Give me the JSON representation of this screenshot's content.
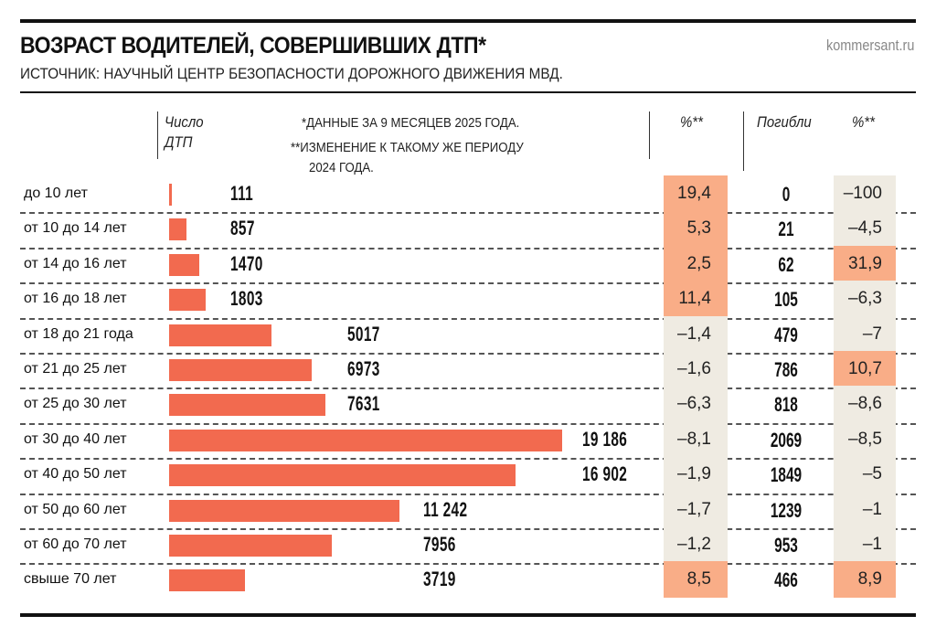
{
  "header": {
    "title": "ВОЗРАСТ ВОДИТЕЛЕЙ, СОВЕРШИВШИХ ДТП*",
    "site": "kommersant.ru",
    "source": "ИСТОЧНИК: НАУЧНЫЙ ЦЕНТР БЕЗОПАСНОСТИ ДОРОЖНОГО ДВИЖЕНИЯ МВД."
  },
  "columns": {
    "accidents_line1": "Число",
    "accidents_line2": "ДТП",
    "pct1": "%**",
    "deaths": "Погибли",
    "pct2": "%**"
  },
  "notes": {
    "n1": "*ДАННЫЕ ЗА 9 МЕСЯЦЕВ 2025 ГОДА.",
    "n2a": "**ИЗМЕНЕНИЕ К ТАКОМУ ЖЕ ПЕРИОДУ",
    "n2b": "2024 ГОДА."
  },
  "colors": {
    "bar": "#f26a4f",
    "positive": "#f9ad87",
    "neutral": "#efebe2"
  },
  "chart_data": {
    "type": "bar",
    "categories": [
      "до 10 лет",
      "от 10 до 14 лет",
      "от 14 до 16 лет",
      "от 16 до 18 лет",
      "от 18 до 21 года",
      "от 21 до 25 лет",
      "от 25 до 30 лет",
      "от 30 до 40 лет",
      "от 40 до 50 лет",
      "от 50 до 60 лет",
      "от 60 до 70 лет",
      "свыше 70 лет"
    ],
    "values": [
      111,
      857,
      1470,
      1803,
      5017,
      6973,
      7631,
      19186,
      16902,
      11242,
      7956,
      3719
    ],
    "value_labels": [
      "111",
      "857",
      "1470",
      "1803",
      "5017",
      "6973",
      "7631",
      "19 186",
      "16 902",
      "11 242",
      "7956",
      "3719"
    ],
    "accidents_change_pct": [
      "19,4",
      "5,3",
      "2,5",
      "11,4",
      "–1,4",
      "–1,6",
      "–6,3",
      "–8,1",
      "–1,9",
      "–1,7",
      "–1,2",
      "8,5"
    ],
    "deaths": [
      "0",
      "21",
      "62",
      "105",
      "479",
      "786",
      "818",
      "2069",
      "1849",
      "1239",
      "953",
      "466"
    ],
    "deaths_change_pct": [
      "–100",
      "–4,5",
      "31,9",
      "–6,3",
      "–7",
      "10,7",
      "–8,6",
      "–8,5",
      "–5",
      "–1",
      "–1",
      "8,9"
    ]
  }
}
